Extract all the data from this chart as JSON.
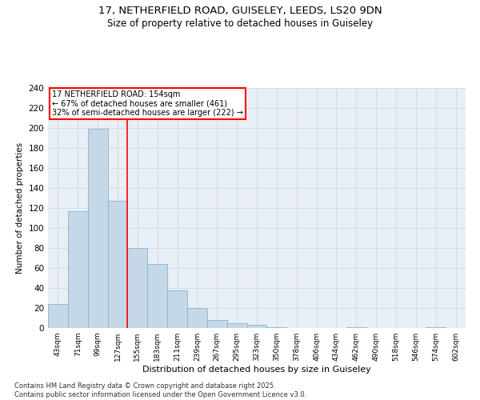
{
  "title1": "17, NETHERFIELD ROAD, GUISELEY, LEEDS, LS20 9DN",
  "title2": "Size of property relative to detached houses in Guiseley",
  "xlabel": "Distribution of detached houses by size in Guiseley",
  "ylabel": "Number of detached properties",
  "categories": [
    "43sqm",
    "71sqm",
    "99sqm",
    "127sqm",
    "155sqm",
    "183sqm",
    "211sqm",
    "239sqm",
    "267sqm",
    "295sqm",
    "323sqm",
    "350sqm",
    "378sqm",
    "406sqm",
    "434sqm",
    "462sqm",
    "490sqm",
    "518sqm",
    "546sqm",
    "574sqm",
    "602sqm"
  ],
  "values": [
    24,
    117,
    199,
    127,
    80,
    64,
    38,
    20,
    8,
    5,
    3,
    1,
    0,
    0,
    0,
    1,
    0,
    0,
    0,
    1,
    0
  ],
  "bar_color": "#c5d8e8",
  "bar_edge_color": "#7aaac8",
  "grid_color": "#d0dde8",
  "background_color": "#e8eff5",
  "red_line_x": 3.5,
  "annotation_line1": "17 NETHERFIELD ROAD: 154sqm",
  "annotation_line2": "← 67% of detached houses are smaller (461)",
  "annotation_line3": "32% of semi-detached houses are larger (222) →",
  "ymax": 240,
  "yticks": [
    0,
    20,
    40,
    60,
    80,
    100,
    120,
    140,
    160,
    180,
    200,
    220,
    240
  ],
  "footer1": "Contains HM Land Registry data © Crown copyright and database right 2025.",
  "footer2": "Contains public sector information licensed under the Open Government Licence v3.0."
}
